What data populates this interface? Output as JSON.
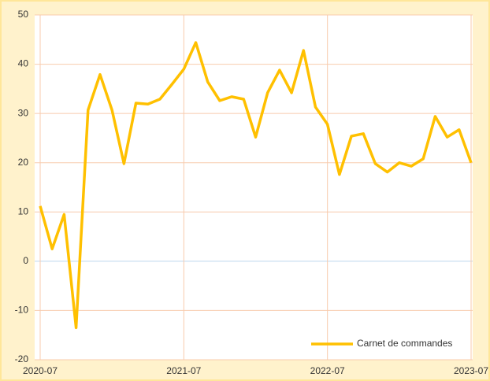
{
  "chart_data": {
    "type": "line",
    "categories": [
      "2020-07",
      null,
      null,
      null,
      null,
      null,
      null,
      null,
      null,
      null,
      null,
      null,
      "2021-07",
      null,
      null,
      null,
      null,
      null,
      null,
      null,
      null,
      null,
      null,
      null,
      "2022-07",
      null,
      null,
      null,
      null,
      null,
      null,
      null,
      null,
      null,
      null,
      null,
      "2023-07"
    ],
    "series": [
      {
        "name": "Carnet de commandes",
        "color": "#ffc000",
        "values": [
          11.2,
          2.5,
          9.5,
          -13.5,
          30.7,
          37.9,
          30.7,
          19.8,
          32.1,
          31.9,
          32.9,
          35.9,
          39.0,
          44.4,
          36.4,
          32.6,
          33.4,
          32.9,
          25.2,
          34.2,
          38.8,
          34.2,
          42.8,
          31.3,
          27.8,
          17.6,
          25.4,
          25.9,
          19.8,
          18.1,
          20.0,
          19.3,
          20.8,
          29.4,
          25.2,
          26.7,
          20.0
        ]
      }
    ],
    "ylim": [
      -20,
      50
    ],
    "yticks": [
      -20,
      -10,
      0,
      10,
      20,
      30,
      40,
      50
    ],
    "grid": true,
    "legend": "lower right"
  }
}
